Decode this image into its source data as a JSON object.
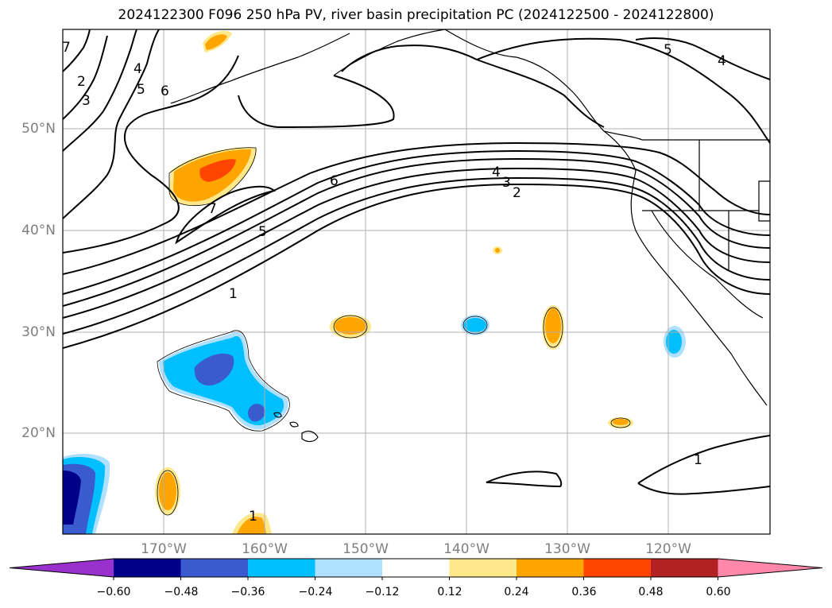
{
  "title": "2024122300 F096 250 hPa PV, river basin precipitation PC (2024122500 - 2024122800)",
  "map": {
    "lat_labels": [
      "50°N",
      "40°N",
      "30°N",
      "20°N"
    ],
    "lon_labels": [
      "170°W",
      "160°W",
      "150°W",
      "140°W",
      "130°W",
      "120°W"
    ],
    "pv_contour_labels": [
      "1",
      "2",
      "3",
      "4",
      "5",
      "6",
      "7"
    ]
  },
  "colorbar": {
    "ticks": [
      "−0.60",
      "−0.48",
      "−0.36",
      "−0.24",
      "−0.12",
      "0.12",
      "0.24",
      "0.36",
      "0.48",
      "0.60"
    ],
    "colors": [
      "#9932cc",
      "#00008b",
      "#3a5bcf",
      "#00bfff",
      "#b0e0ff",
      "#ffffff",
      "#ffe88a",
      "#ffa500",
      "#ff4500",
      "#b22222",
      "#ff88aa"
    ]
  }
}
